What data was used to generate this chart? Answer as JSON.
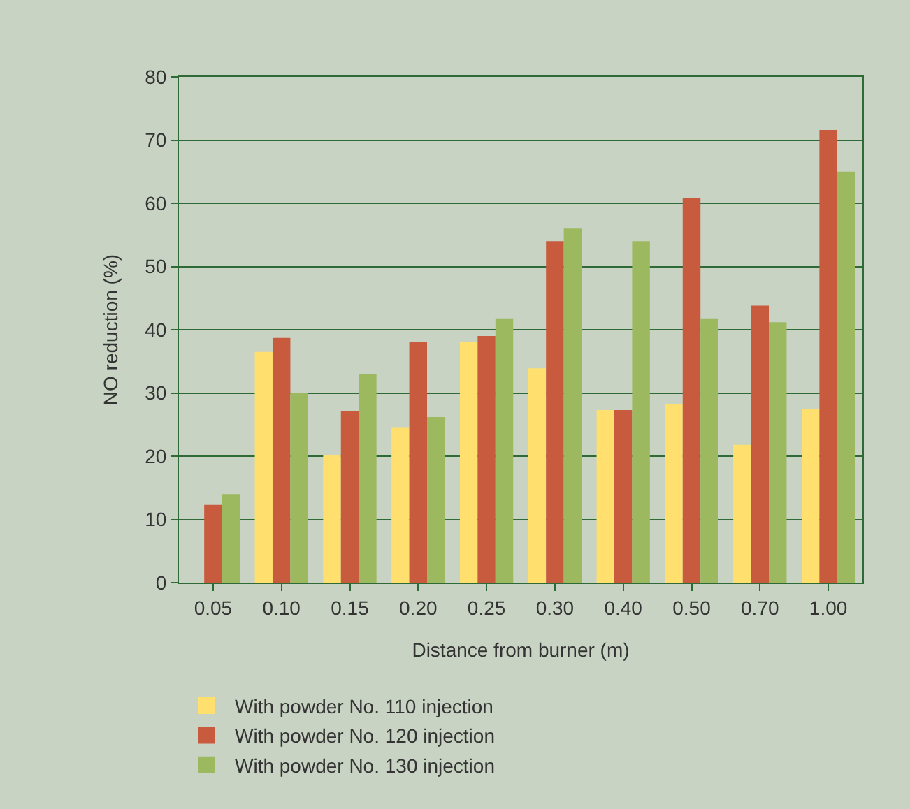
{
  "chart_data": {
    "type": "bar",
    "xlabel": "Distance from burner (m)",
    "ylabel": "NO reduction (%)",
    "categories": [
      "0.05",
      "0.10",
      "0.15",
      "0.20",
      "0.25",
      "0.30",
      "0.40",
      "0.50",
      "0.70",
      "1.00"
    ],
    "series": [
      {
        "name": "With powder No. 110 injection",
        "color": "#ffe06e",
        "values": [
          null,
          36.5,
          20.1,
          24.6,
          38.1,
          33.9,
          27.3,
          28.2,
          21.8,
          27.5
        ]
      },
      {
        "name": "With powder No. 120 injection",
        "color": "#c85a3e",
        "values": [
          12.3,
          38.7,
          27.1,
          38.1,
          39.0,
          54.0,
          27.3,
          60.8,
          43.8,
          71.6
        ]
      },
      {
        "name": "With powder No. 130 injection",
        "color": "#9db960",
        "values": [
          14.0,
          30.0,
          33.0,
          26.2,
          41.8,
          56.0,
          54.0,
          41.8,
          41.2,
          65.0
        ]
      }
    ],
    "ylim": [
      0,
      80
    ],
    "yticks": [
      0,
      10,
      20,
      30,
      40,
      50,
      60,
      70,
      80
    ],
    "grid": "y",
    "legend": "bottom left"
  }
}
